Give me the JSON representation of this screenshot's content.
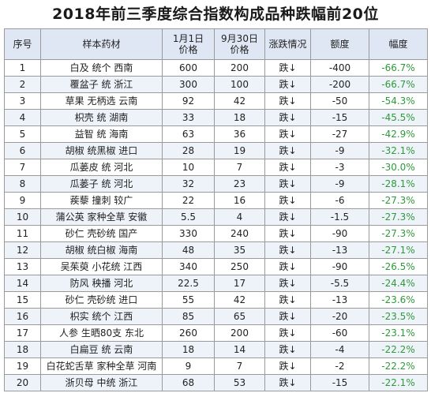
{
  "title": "2018年前三季度综合指数构成品种跌幅前20位",
  "colors": {
    "header_bg": "#dfe7f4",
    "stripe_bg": "#eef2f9",
    "pct_color": "#2f9a3a",
    "border": "#9a9a9a"
  },
  "headers": {
    "idx": "序号",
    "name": "样本药材",
    "price1": [
      "1月1日",
      "价格"
    ],
    "price2": [
      "9月30日",
      "价格"
    ],
    "trend": "涨跌情况",
    "amount": "额度",
    "pct": "幅度"
  },
  "rows": [
    {
      "idx": "1",
      "name": "白及 统个 西南",
      "p1": "600",
      "p2": "200",
      "trend": "跌↓",
      "amount": "-400",
      "pct": "-66.7%"
    },
    {
      "idx": "2",
      "name": "覆盆子 统 浙江",
      "p1": "300",
      "p2": "100",
      "trend": "跌↓",
      "amount": "-200",
      "pct": "-66.7%"
    },
    {
      "idx": "3",
      "name": "草果 无柄选 云南",
      "p1": "92",
      "p2": "42",
      "trend": "跌↓",
      "amount": "-50",
      "pct": "-54.3%"
    },
    {
      "idx": "4",
      "name": "枳壳 统 湖南",
      "p1": "33",
      "p2": "18",
      "trend": "跌↓",
      "amount": "-15",
      "pct": "-45.5%"
    },
    {
      "idx": "5",
      "name": "益智 统 海南",
      "p1": "63",
      "p2": "36",
      "trend": "跌↓",
      "amount": "-27",
      "pct": "-42.9%"
    },
    {
      "idx": "6",
      "name": "胡椒 统黑椒 进口",
      "p1": "28",
      "p2": "19",
      "trend": "跌↓",
      "amount": "-9",
      "pct": "-32.1%"
    },
    {
      "idx": "7",
      "name": "瓜蒌皮 统 河北",
      "p1": "10",
      "p2": "7",
      "trend": "跌↓",
      "amount": "-3",
      "pct": "-30.0%"
    },
    {
      "idx": "8",
      "name": "瓜蒌子 统 河北",
      "p1": "32",
      "p2": "23",
      "trend": "跌↓",
      "amount": "-9",
      "pct": "-28.1%"
    },
    {
      "idx": "9",
      "name": "蒺藜 撞刺 较广",
      "p1": "22",
      "p2": "16",
      "trend": "跌↓",
      "amount": "-6",
      "pct": "-27.3%"
    },
    {
      "idx": "10",
      "name": "蒲公英 家种全草 安徽",
      "p1": "5.5",
      "p2": "4",
      "trend": "跌↓",
      "amount": "-1.5",
      "pct": "-27.3%"
    },
    {
      "idx": "11",
      "name": "砂仁 壳砂统 国产",
      "p1": "330",
      "p2": "240",
      "trend": "跌↓",
      "amount": "-90",
      "pct": "-27.3%"
    },
    {
      "idx": "12",
      "name": "胡椒 统白椒 海南",
      "p1": "48",
      "p2": "35",
      "trend": "跌↓",
      "amount": "-13",
      "pct": "-27.1%"
    },
    {
      "idx": "13",
      "name": "吴茱萸 小花统 江西",
      "p1": "340",
      "p2": "250",
      "trend": "跌↓",
      "amount": "-90",
      "pct": "-26.5%"
    },
    {
      "idx": "14",
      "name": "防风 秧播 河北",
      "p1": "22.5",
      "p2": "17",
      "trend": "跌↓",
      "amount": "-5.5",
      "pct": "-24.4%"
    },
    {
      "idx": "15",
      "name": "砂仁 壳砂统 进口",
      "p1": "55",
      "p2": "42",
      "trend": "跌↓",
      "amount": "-13",
      "pct": "-23.6%"
    },
    {
      "idx": "16",
      "name": "枳实 统个 江西",
      "p1": "85",
      "p2": "65",
      "trend": "跌↓",
      "amount": "-20",
      "pct": "-23.5%"
    },
    {
      "idx": "17",
      "name": "人参 生晒80支 东北",
      "p1": "260",
      "p2": "200",
      "trend": "跌↓",
      "amount": "-60",
      "pct": "-23.1%"
    },
    {
      "idx": "18",
      "name": "白扁豆 统 云南",
      "p1": "18",
      "p2": "14",
      "trend": "跌↓",
      "amount": "-4",
      "pct": "-22.2%"
    },
    {
      "idx": "19",
      "name": "白花蛇舌草 家种全草 河南",
      "p1": "9",
      "p2": "7",
      "trend": "跌↓",
      "amount": "-2",
      "pct": "-22.2%"
    },
    {
      "idx": "20",
      "name": "浙贝母 中统 浙江",
      "p1": "68",
      "p2": "53",
      "trend": "跌↓",
      "amount": "-15",
      "pct": "-22.1%"
    }
  ]
}
